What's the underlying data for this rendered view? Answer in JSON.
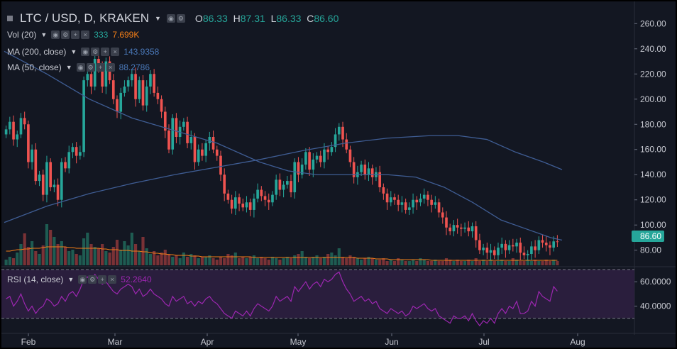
{
  "symbol": {
    "title": "LTC / USD, D, KRAKEN",
    "open_label": "O",
    "open": "86.33",
    "high_label": "H",
    "high": "87.31",
    "low_label": "L",
    "low": "86.33",
    "close_label": "C",
    "close": "86.60"
  },
  "indicators": {
    "vol": {
      "label": "Vol (20)",
      "value1": "333",
      "value2": "7.699K",
      "value2_color": "#f57f17"
    },
    "ma200": {
      "label": "MA (200, close)",
      "value": "143.9358",
      "color": "#4a6fa5"
    },
    "ma50": {
      "label": "MA (50, close)",
      "value": "88.2786",
      "color": "#4a6fa5"
    },
    "rsi": {
      "label": "RSI (14, close)",
      "value": "52.2640",
      "color": "#9c27b0"
    }
  },
  "price_tag": "86.60",
  "colors": {
    "up": "#26a69a",
    "down": "#ef5350",
    "background": "#131722",
    "grid": "#1e2230",
    "rsi_band": "#2a1e3d"
  },
  "chart_data": [
    {
      "type": "candlestick",
      "title": "LTC / USD, D, KRAKEN",
      "x_tick_labels": [
        "Feb",
        "Mar",
        "Apr",
        "May",
        "Jun",
        "Jul",
        "Aug"
      ],
      "y_tick_labels": [
        "80.00",
        "100.00",
        "120.00",
        "140.00",
        "160.00",
        "180.00",
        "200.00",
        "220.00",
        "240.00",
        "260.00"
      ],
      "ylim": [
        68,
        272
      ],
      "grid": false,
      "series": [
        {
          "name": "LTC / USD",
          "kind": "ohlc",
          "closes": [
            176,
            182,
            168,
            172,
            185,
            180,
            150,
            160,
            135,
            140,
            124,
            150,
            130,
            132,
            120,
            150,
            145,
            158,
            162,
            155,
            158,
            215,
            220,
            210,
            232,
            225,
            210,
            230,
            215,
            200,
            190,
            205,
            210,
            215,
            220,
            200,
            215,
            195,
            210,
            220,
            205,
            200,
            190,
            175,
            160,
            185,
            170,
            178,
            182,
            165,
            170,
            150,
            160,
            155,
            165,
            170,
            160,
            155,
            140,
            125,
            120,
            113,
            122,
            117,
            114,
            118,
            112,
            121,
            128,
            123,
            120,
            118,
            124,
            136,
            128,
            132,
            135,
            126,
            150,
            140,
            148,
            158,
            144,
            152,
            155,
            150,
            160,
            158,
            162,
            172,
            178,
            168,
            160,
            150,
            138,
            142,
            148,
            140,
            145,
            138,
            142,
            130,
            125,
            118,
            122,
            120,
            116,
            118,
            112,
            114,
            120,
            118,
            121,
            124,
            120,
            116,
            118,
            110,
            106,
            98,
            95,
            100,
            98,
            97,
            98,
            95,
            99,
            88,
            80,
            82,
            78,
            80,
            76,
            82,
            85,
            80,
            84,
            83,
            86,
            78,
            76,
            77,
            83,
            80,
            88,
            86,
            84,
            82,
            87,
            86.6
          ]
        }
      ]
    },
    {
      "type": "line",
      "series": [
        {
          "name": "MA (200, close)",
          "points": [
            [
              0,
              102
            ],
            [
              60,
              115
            ],
            [
              120,
              125
            ],
            [
              180,
              133
            ],
            [
              240,
              140
            ],
            [
              300,
              146
            ],
            [
              360,
              152
            ],
            [
              420,
              159
            ],
            [
              480,
              165
            ],
            [
              540,
              169
            ],
            [
              600,
              171
            ],
            [
              640,
              171
            ],
            [
              680,
              168
            ],
            [
              720,
              158
            ],
            [
              760,
              150
            ],
            [
              786,
              144
            ]
          ]
        },
        {
          "name": "MA (50, close)",
          "points": [
            [
              0,
              238
            ],
            [
              60,
              220
            ],
            [
              120,
              200
            ],
            [
              180,
              185
            ],
            [
              240,
              175
            ],
            [
              300,
              165
            ],
            [
              360,
              150
            ],
            [
              400,
              143
            ],
            [
              440,
              140
            ],
            [
              480,
              140
            ],
            [
              540,
              140
            ],
            [
              580,
              138
            ],
            [
              620,
              130
            ],
            [
              660,
              118
            ],
            [
              700,
              104
            ],
            [
              740,
              96
            ],
            [
              770,
              90
            ],
            [
              786,
              88
            ]
          ]
        }
      ]
    },
    {
      "type": "bar",
      "name": "Vol (20)",
      "series": [
        {
          "name": "Vol (20)",
          "values": [
            8,
            12,
            10,
            18,
            30,
            45,
            26,
            34,
            20,
            16,
            28,
            58,
            50,
            40,
            30,
            34,
            26,
            20,
            22,
            16,
            14,
            38,
            46,
            30,
            26,
            24,
            30,
            20,
            18,
            26,
            36,
            22,
            34,
            28,
            46,
            30,
            20,
            40,
            24,
            16,
            20,
            14,
            18,
            22,
            16,
            12,
            14,
            10,
            18,
            12,
            16,
            14,
            10,
            12,
            12,
            14,
            10,
            8,
            12,
            10,
            16,
            14,
            18,
            10,
            12,
            10,
            12,
            14,
            10,
            12,
            10,
            8,
            12,
            10,
            8,
            10,
            12,
            10,
            14,
            16,
            20,
            12,
            10,
            12,
            14,
            10,
            12,
            16,
            18,
            14,
            24,
            12,
            10,
            14,
            12,
            10,
            8,
            10,
            12,
            10,
            8,
            8,
            10,
            6,
            8,
            6,
            10,
            8,
            6,
            6,
            8,
            6,
            10,
            8,
            6,
            6,
            8,
            6,
            6,
            10,
            8,
            6,
            8,
            6,
            6,
            8,
            6,
            10,
            6,
            8,
            6,
            8,
            6,
            6,
            8,
            6,
            6,
            10,
            8,
            6,
            6,
            8,
            6,
            8,
            6,
            6,
            8,
            6,
            8,
            6
          ]
        },
        {
          "name": "Volume MA",
          "values": [
            20,
            20,
            21,
            22,
            22,
            23,
            23,
            24,
            24,
            24,
            25,
            26,
            26,
            26,
            26,
            26,
            26,
            25,
            25,
            24,
            24,
            24,
            24,
            24,
            24,
            24,
            23,
            23,
            22,
            22,
            22,
            21,
            21,
            21,
            20,
            20,
            20,
            19,
            19,
            18,
            17,
            17,
            16,
            16,
            15,
            15,
            14,
            14,
            14,
            14,
            13,
            13,
            13,
            12,
            12,
            12,
            12,
            12,
            12,
            12,
            12,
            12,
            12,
            12,
            12,
            12,
            12,
            11,
            11,
            11,
            11,
            11,
            11,
            11,
            11,
            11,
            11,
            11,
            11,
            11,
            11,
            11,
            11,
            11,
            11,
            11,
            11,
            11,
            11,
            11,
            11,
            11,
            11,
            11,
            11,
            10,
            10,
            10,
            10,
            10,
            9,
            9,
            9,
            9,
            8,
            8,
            8,
            8,
            8,
            8,
            8,
            8,
            8,
            8,
            8,
            7,
            7,
            7,
            7,
            7,
            7,
            7,
            7,
            7,
            7,
            7,
            7,
            7,
            7,
            7,
            7,
            7,
            7,
            7,
            7,
            7,
            7,
            7,
            7,
            7,
            7,
            7,
            7,
            7,
            7,
            7,
            7,
            7,
            7,
            7
          ]
        }
      ]
    },
    {
      "type": "line",
      "name": "RSI (14, close)",
      "y_tick_labels": [
        "40.0000",
        "60.0000"
      ],
      "ylim": [
        20,
        70
      ],
      "band": [
        30,
        70
      ],
      "series": [
        {
          "name": "RSI (14, close)",
          "values": [
            46,
            48,
            40,
            44,
            50,
            42,
            36,
            40,
            34,
            38,
            40,
            46,
            44,
            40,
            42,
            48,
            44,
            50,
            52,
            48,
            54,
            62,
            64,
            60,
            66,
            62,
            58,
            60,
            56,
            52,
            50,
            54,
            56,
            58,
            56,
            50,
            54,
            48,
            50,
            54,
            50,
            48,
            46,
            42,
            40,
            48,
            44,
            46,
            48,
            42,
            44,
            40,
            44,
            42,
            46,
            48,
            44,
            42,
            38,
            34,
            32,
            30,
            36,
            34,
            32,
            36,
            32,
            38,
            42,
            40,
            38,
            36,
            40,
            48,
            44,
            46,
            48,
            44,
            56,
            52,
            56,
            60,
            54,
            58,
            60,
            56,
            62,
            60,
            62,
            66,
            68,
            60,
            54,
            50,
            44,
            46,
            48,
            44,
            46,
            42,
            44,
            38,
            36,
            34,
            38,
            36,
            34,
            36,
            32,
            34,
            40,
            38,
            40,
            42,
            38,
            36,
            38,
            32,
            30,
            28,
            26,
            32,
            30,
            30,
            32,
            28,
            34,
            28,
            24,
            28,
            26,
            30,
            26,
            34,
            38,
            34,
            40,
            38,
            44,
            34,
            34,
            36,
            44,
            40,
            52,
            48,
            46,
            44,
            56,
            52.3
          ]
        }
      ]
    }
  ]
}
